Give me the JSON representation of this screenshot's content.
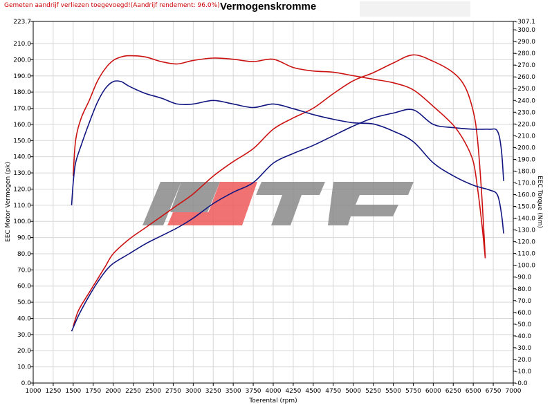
{
  "header": {
    "note": "Gemeten aandrijf verliezen toegevoegd!(Aandrijf rendement: 96.0%)",
    "title": "Vermogenskromme"
  },
  "logo": {
    "text": "BTF",
    "color_dark": "#8a8a8a",
    "color_red": "#ee5a5a"
  },
  "colors": {
    "red": "#cc1111",
    "blue": "#101580",
    "grid": "#d6d6d6"
  },
  "chart_data": {
    "type": "line",
    "title": "Vermogenskromme",
    "xlabel": "Toerental (rpm)",
    "ylabel": "EEC Motor Vermogen (pk)",
    "y2label": "EEC Torque (Nm)",
    "xlim": [
      1000,
      7000
    ],
    "ylim": [
      0,
      223.7
    ],
    "y2lim": [
      0,
      307.1
    ],
    "x_ticks": [
      "1000",
      "1250",
      "1500",
      "1750",
      "2000",
      "2250",
      "2500",
      "2750",
      "3000",
      "3250",
      "3500",
      "3750",
      "4000",
      "4250",
      "4500",
      "4750",
      "5000",
      "5250",
      "5500",
      "5750",
      "6000",
      "6250",
      "6500",
      "6750",
      "7000"
    ],
    "y_ticks": [
      "0.0",
      "10.0",
      "20.0",
      "30.0",
      "40.0",
      "50.0",
      "60.0",
      "70.0",
      "80.0",
      "90.0",
      "100.0",
      "110.0",
      "120.0",
      "130.0",
      "140.0",
      "150.0",
      "160.0",
      "170.0",
      "180.0",
      "190.0",
      "200.0",
      "210.0",
      "223.7"
    ],
    "y2_ticks": [
      "0.0",
      "10.0",
      "20.0",
      "30.0",
      "40.0",
      "50.0",
      "60.0",
      "70.0",
      "80.0",
      "90.0",
      "100.0",
      "110.0",
      "120.0",
      "130.0",
      "140.0",
      "150.0",
      "160.0",
      "170.0",
      "180.0",
      "190.0",
      "200.0",
      "210.0",
      "220.0",
      "230.0",
      "240.0",
      "250.0",
      "260.0",
      "270.0",
      "280.0",
      "290.0",
      "300.0",
      "307.1"
    ],
    "grid": true,
    "series": [
      {
        "color": "#cc1111",
        "axis": "left",
        "x": [
          1500,
          1550,
          1600,
          1700,
          1800,
          1900,
          2000,
          2200,
          2400,
          2600,
          2800,
          3000,
          3250,
          3500,
          3750,
          4000,
          4250,
          4500,
          4750,
          5000,
          5250,
          5500,
          5750,
          6000,
          6250,
          6400,
          6500,
          6550,
          6600,
          6650
        ],
        "y": [
          35,
          43,
          48,
          56,
          64,
          72,
          80,
          89,
          96,
          103,
          110,
          117,
          128,
          137,
          145,
          157,
          164,
          170,
          179,
          187,
          192,
          198,
          203,
          199,
          192,
          183,
          168,
          152,
          121,
          78
        ]
      },
      {
        "color": "#101580",
        "axis": "left",
        "x": [
          1480,
          1550,
          1600,
          1700,
          1800,
          1900,
          2000,
          2200,
          2400,
          2600,
          2800,
          3000,
          3250,
          3500,
          3750,
          4000,
          4250,
          4500,
          4750,
          5000,
          5250,
          5500,
          5750,
          6000,
          6250,
          6500,
          6700,
          6800,
          6850,
          6880
        ],
        "y": [
          32,
          40,
          45,
          54,
          62,
          69,
          74,
          80,
          86,
          91,
          96,
          102,
          111,
          118,
          124,
          136,
          142,
          147,
          153,
          159,
          164,
          167,
          169,
          160,
          158,
          157,
          157,
          156,
          145,
          125
        ]
      },
      {
        "color": "#cc1111",
        "axis": "right",
        "x": [
          1500,
          1530,
          1600,
          1700,
          1800,
          1900,
          2000,
          2100,
          2200,
          2400,
          2600,
          2800,
          3000,
          3250,
          3500,
          3750,
          4000,
          4250,
          4500,
          4750,
          5000,
          5250,
          5500,
          5750,
          6000,
          6250,
          6400,
          6500,
          6550,
          6600,
          6650
        ],
        "y": [
          176,
          206,
          225,
          240,
          256,
          267,
          274,
          277,
          278,
          277,
          273,
          271,
          274,
          276,
          275,
          273,
          275,
          268,
          265,
          264,
          261,
          258,
          255,
          249,
          235,
          219,
          204,
          188,
          167,
          140,
          106
        ]
      },
      {
        "color": "#101580",
        "axis": "right",
        "x": [
          1480,
          1500,
          1530,
          1600,
          1700,
          1800,
          1900,
          2000,
          2100,
          2200,
          2400,
          2600,
          2800,
          3000,
          3250,
          3500,
          3750,
          4000,
          4250,
          4500,
          4750,
          5000,
          5250,
          5500,
          5750,
          6000,
          6250,
          6500,
          6700,
          6800,
          6850,
          6880
        ],
        "y": [
          151,
          170,
          187,
          202,
          221,
          238,
          250,
          256,
          256,
          252,
          246,
          242,
          237,
          237,
          240,
          237,
          234,
          237,
          233,
          228,
          224,
          221,
          220,
          214,
          205,
          187,
          176,
          168,
          164,
          160,
          145,
          127
        ]
      }
    ]
  }
}
